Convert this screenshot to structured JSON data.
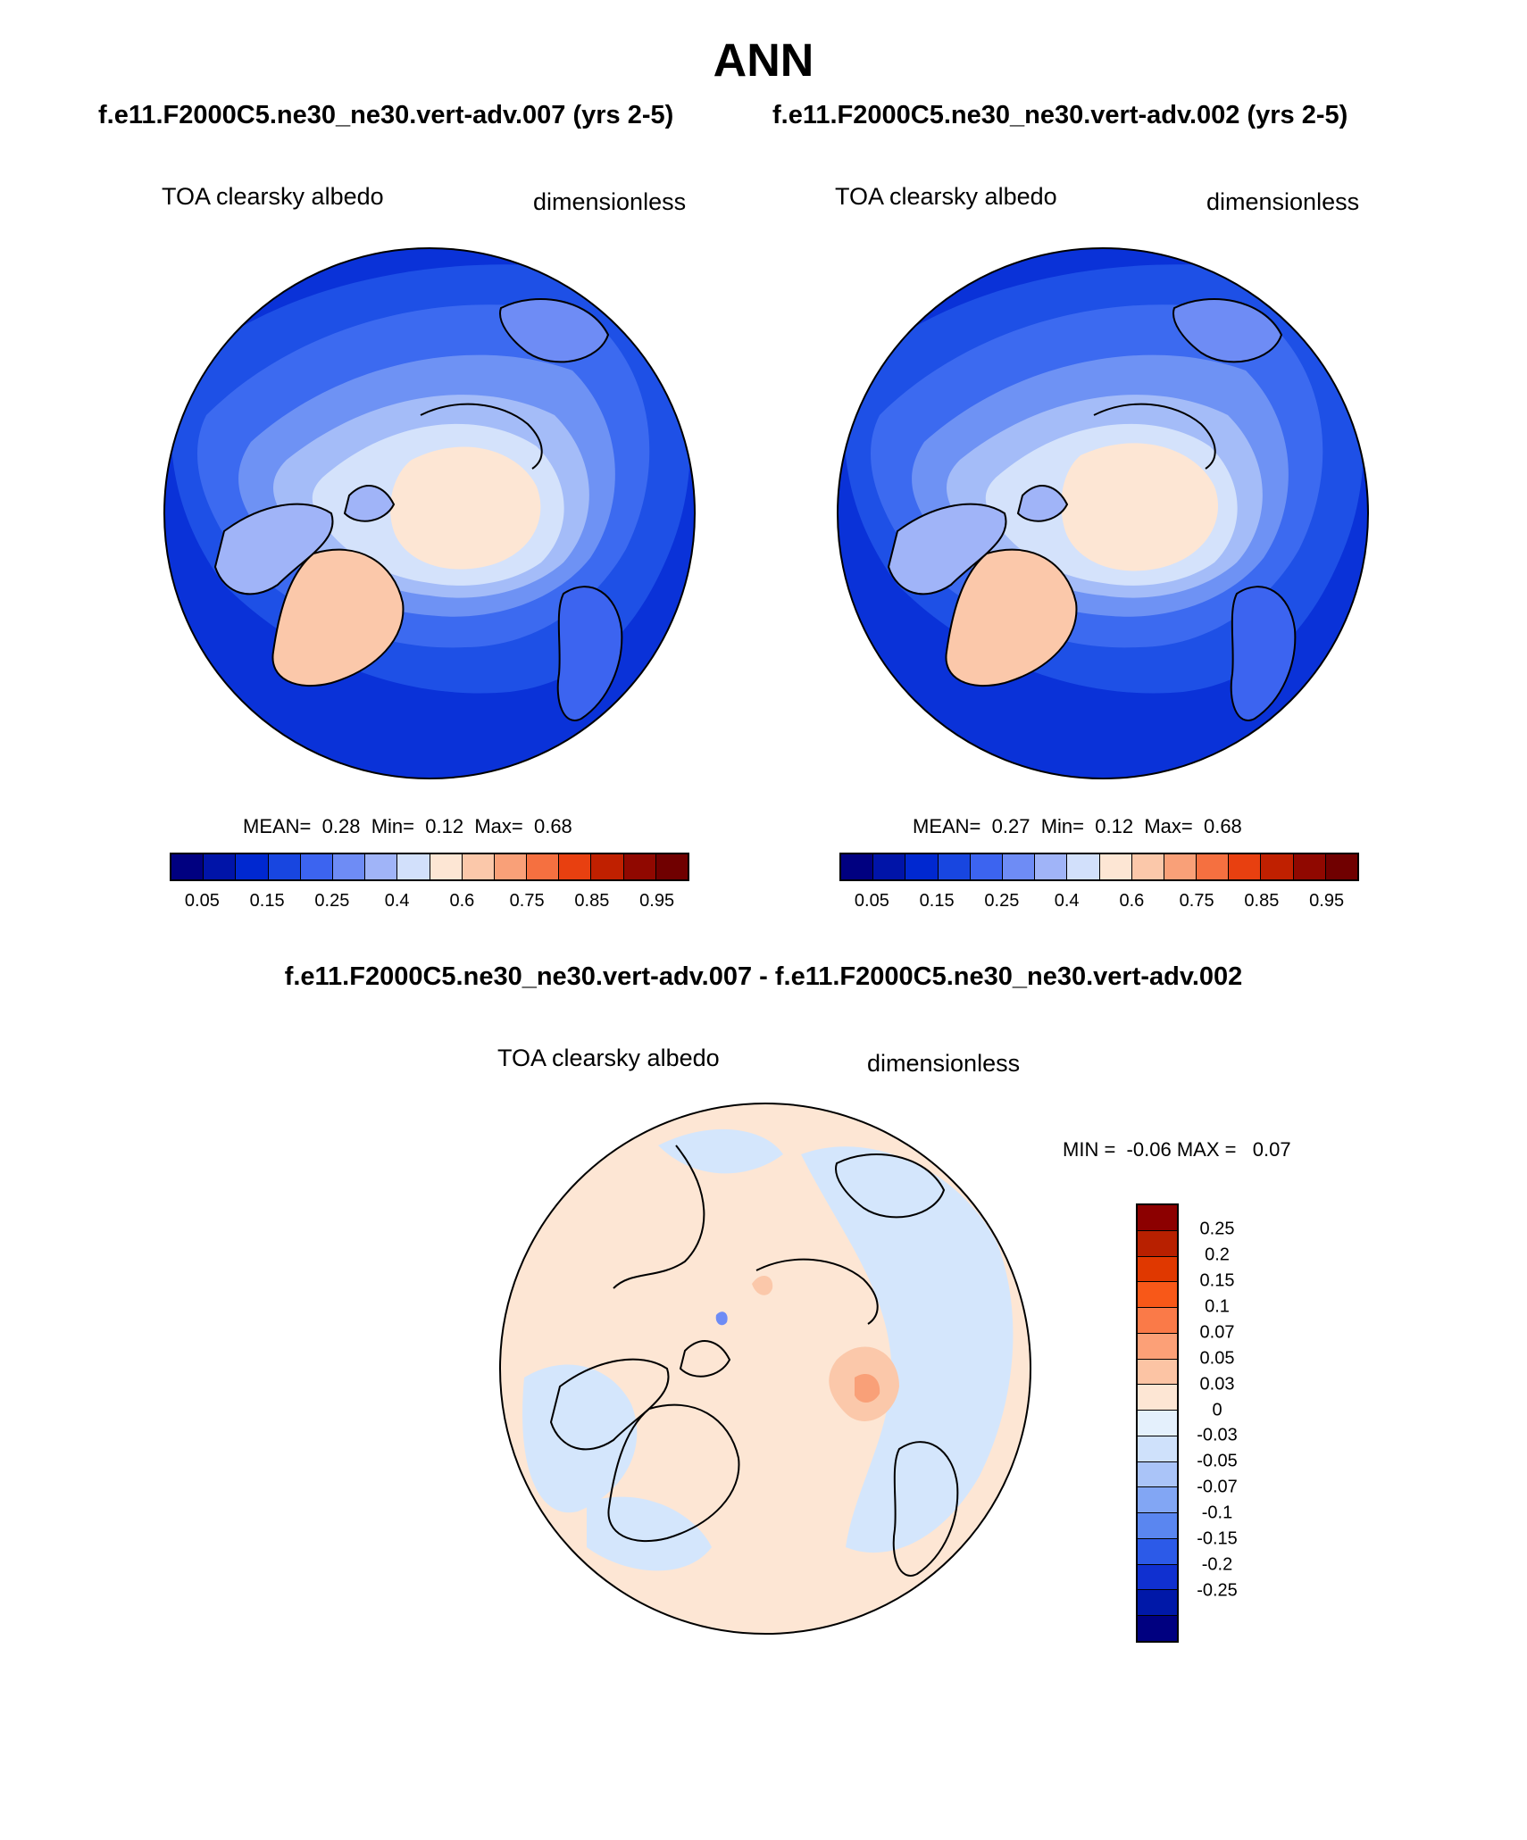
{
  "page": {
    "title": "ANN",
    "subtitle_left": "f.e11.F2000C5.ne30_ne30.vert-adv.007 (yrs 2-5)",
    "subtitle_right": "f.e11.F2000C5.ne30_ne30.vert-adv.002 (yrs 2-5)",
    "diff_title": "f.e11.F2000C5.ne30_ne30.vert-adv.007 - f.e11.F2000C5.ne30_ne30.vert-adv.002"
  },
  "panels": [
    {
      "variable": "TOA clearsky albedo",
      "units": "dimensionless",
      "mean_label": "MEAN=",
      "mean": "0.28",
      "min_label": "Min=",
      "min": "0.12",
      "max_label": "Max=",
      "max": "0.68"
    },
    {
      "variable": "TOA clearsky albedo",
      "units": "dimensionless",
      "mean_label": "MEAN=",
      "mean": "0.27",
      "min_label": "Min=",
      "min": "0.12",
      "max_label": "Max=",
      "max": "0.68"
    }
  ],
  "diff_panel": {
    "variable": "TOA clearsky albedo",
    "units": "dimensionless",
    "min_label": "MIN =",
    "min": "-0.06",
    "max_label": "MAX =",
    "max": "0.07"
  },
  "colorbar": {
    "colors": [
      "#000080",
      "#0014a8",
      "#0028d0",
      "#1846e0",
      "#3c64f0",
      "#6e8cf5",
      "#a0b4f8",
      "#d2e0fb",
      "#fde6d4",
      "#fbc8aa",
      "#f9a078",
      "#f57040",
      "#e84010",
      "#c02000",
      "#900800",
      "#700000"
    ],
    "tick_labels": [
      "0.05",
      "0.15",
      "0.25",
      "0.4",
      "0.6",
      "0.75",
      "0.85",
      "0.95"
    ]
  },
  "diff_colorbar": {
    "colors_top_to_bottom": [
      "#8c0000",
      "#b82000",
      "#e03800",
      "#f85818",
      "#fa7a48",
      "#fca077",
      "#fcc4a4",
      "#fde6d4",
      "#e4f0fc",
      "#cfe1fb",
      "#aac4f8",
      "#82a6f4",
      "#5a86f0",
      "#2c5ae8",
      "#1030d0",
      "#0018a8",
      "#000080"
    ],
    "tick_labels_top_to_bottom": [
      "0.25",
      "0.2",
      "0.15",
      "0.1",
      "0.07",
      "0.05",
      "0.03",
      "0",
      "-0.03",
      "-0.05",
      "-0.07",
      "-0.1",
      "-0.15",
      "-0.2",
      "-0.25"
    ]
  }
}
